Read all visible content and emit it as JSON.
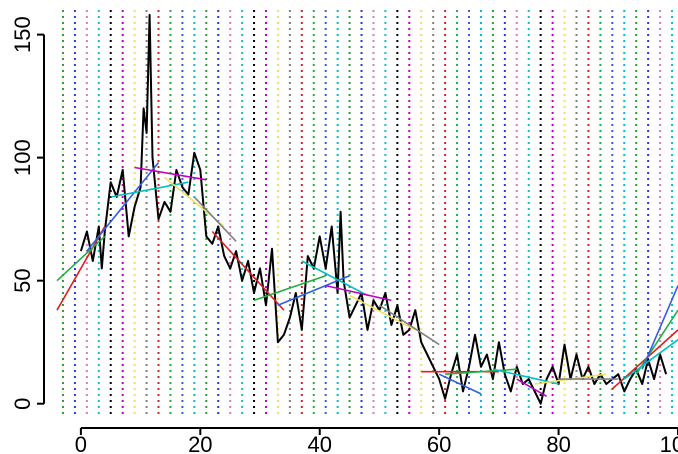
{
  "chart_data": {
    "type": "line",
    "title": "",
    "xlabel": "",
    "ylabel": "",
    "xlim": [
      -4,
      100
    ],
    "ylim": [
      -5,
      160
    ],
    "x_ticks": [
      0,
      20,
      40,
      60,
      80,
      100
    ],
    "y_ticks": [
      0,
      50,
      100,
      150
    ],
    "x_tick_labels": [
      "0",
      "20",
      "40",
      "60",
      "80",
      "100"
    ],
    "y_tick_labels": [
      "0",
      "50",
      "100",
      "150"
    ],
    "grid_x": [
      -3,
      -1,
      1,
      3,
      5,
      7,
      9,
      11,
      13,
      15,
      17,
      19,
      21,
      23,
      25,
      27,
      29,
      31,
      33,
      35,
      37,
      39,
      41,
      43,
      45,
      47,
      49,
      51,
      53,
      55,
      57,
      59,
      61,
      63,
      65,
      67,
      69,
      71,
      73,
      75,
      77,
      79,
      81,
      83,
      85,
      87,
      89,
      91,
      93,
      95,
      97,
      99
    ],
    "grid_colors": [
      "#2ca02c",
      "#1f3fd8",
      "#e377c2",
      "#17becf",
      "#000000",
      "#c000c0",
      "#f0e060",
      "#808080",
      "#e02020",
      "#20b040",
      "#3060e0",
      "#00c0c0"
    ],
    "series": [
      {
        "color": "#000000",
        "x": [
          0,
          1,
          2,
          3,
          3.5,
          4,
          5,
          6,
          7,
          8,
          9,
          10,
          10.5,
          11,
          11.5,
          12,
          13,
          14,
          15,
          16,
          17,
          18,
          19,
          20,
          21,
          22,
          23,
          24,
          25,
          26,
          27,
          28,
          29,
          30,
          31,
          32,
          33,
          34,
          35,
          36,
          37,
          38,
          39,
          40,
          41,
          42,
          43,
          43.5,
          44,
          45,
          46,
          47,
          48,
          49,
          50,
          51,
          52,
          53,
          54,
          55,
          56,
          57,
          58,
          59,
          60,
          61,
          62,
          63,
          64,
          65,
          66,
          67,
          68,
          69,
          70,
          71,
          72,
          73,
          74,
          75,
          76,
          77,
          78,
          79,
          80,
          81,
          82,
          83,
          84,
          85,
          86,
          87,
          88,
          89,
          90,
          91,
          92,
          93,
          94,
          95,
          96,
          97,
          98
        ],
        "y": [
          62,
          70,
          58,
          72,
          55,
          70,
          90,
          84,
          95,
          68,
          80,
          88,
          120,
          110,
          158,
          100,
          75,
          82,
          78,
          95,
          88,
          85,
          102,
          95,
          68,
          65,
          72,
          60,
          55,
          62,
          50,
          58,
          45,
          55,
          40,
          63,
          25,
          28,
          35,
          45,
          30,
          60,
          55,
          68,
          55,
          72,
          45,
          78,
          50,
          35,
          40,
          45,
          30,
          42,
          38,
          45,
          32,
          40,
          28,
          30,
          38,
          25,
          20,
          15,
          10,
          2,
          12,
          20,
          5,
          15,
          28,
          15,
          20,
          10,
          25,
          12,
          5,
          15,
          8,
          10,
          5,
          0,
          10,
          15,
          8,
          24,
          10,
          20,
          10,
          15,
          8,
          12,
          8,
          10,
          12,
          5,
          10,
          14,
          8,
          18,
          10,
          20,
          12
        ]
      },
      {
        "color": "#e02020",
        "x": [
          -4,
          4
        ],
        "y": [
          38,
          72
        ]
      },
      {
        "color": "#20b040",
        "x": [
          -4,
          4
        ],
        "y": [
          50,
          68
        ]
      },
      {
        "color": "#3060e0",
        "x": [
          1,
          13
        ],
        "y": [
          62,
          98
        ]
      },
      {
        "color": "#00c0c0",
        "x": [
          5,
          18
        ],
        "y": [
          84,
          90
        ]
      },
      {
        "color": "#c000c0",
        "x": [
          9,
          21
        ],
        "y": [
          96,
          91
        ]
      },
      {
        "color": "#f0e060",
        "x": [
          14,
          24
        ],
        "y": [
          92,
          72
        ]
      },
      {
        "color": "#808080",
        "x": [
          19,
          26
        ],
        "y": [
          84,
          66
        ]
      },
      {
        "color": "#e02020",
        "x": [
          22,
          34
        ],
        "y": [
          70,
          38
        ]
      },
      {
        "color": "#20b040",
        "x": [
          29,
          41
        ],
        "y": [
          42,
          52
        ]
      },
      {
        "color": "#3060e0",
        "x": [
          33,
          45
        ],
        "y": [
          40,
          52
        ]
      },
      {
        "color": "#00c0c0",
        "x": [
          37,
          48
        ],
        "y": [
          58,
          44
        ]
      },
      {
        "color": "#c000c0",
        "x": [
          41,
          52
        ],
        "y": [
          48,
          42
        ]
      },
      {
        "color": "#f0e060",
        "x": [
          45,
          56
        ],
        "y": [
          44,
          30
        ]
      },
      {
        "color": "#808080",
        "x": [
          50,
          60
        ],
        "y": [
          40,
          24
        ]
      },
      {
        "color": "#e02020",
        "x": [
          57,
          70
        ],
        "y": [
          13,
          13
        ]
      },
      {
        "color": "#20b040",
        "x": [
          61,
          73
        ],
        "y": [
          12,
          14
        ]
      },
      {
        "color": "#3060e0",
        "x": [
          60,
          67
        ],
        "y": [
          12,
          4
        ]
      },
      {
        "color": "#00c0c0",
        "x": [
          69,
          80
        ],
        "y": [
          14,
          8
        ]
      },
      {
        "color": "#c000c0",
        "x": [
          73,
          78
        ],
        "y": [
          10,
          3
        ]
      },
      {
        "color": "#f0e060",
        "x": [
          76,
          88
        ],
        "y": [
          8,
          12
        ]
      },
      {
        "color": "#808080",
        "x": [
          80,
          90
        ],
        "y": [
          10,
          10
        ]
      },
      {
        "color": "#e02020",
        "x": [
          89,
          100
        ],
        "y": [
          6,
          30
        ]
      },
      {
        "color": "#20b040",
        "x": [
          93,
          100
        ],
        "y": [
          12,
          38
        ]
      },
      {
        "color": "#3060e0",
        "x": [
          94,
          100
        ],
        "y": [
          14,
          48
        ]
      },
      {
        "color": "#00c0c0",
        "x": [
          91,
          100
        ],
        "y": [
          10,
          26
        ]
      }
    ]
  }
}
